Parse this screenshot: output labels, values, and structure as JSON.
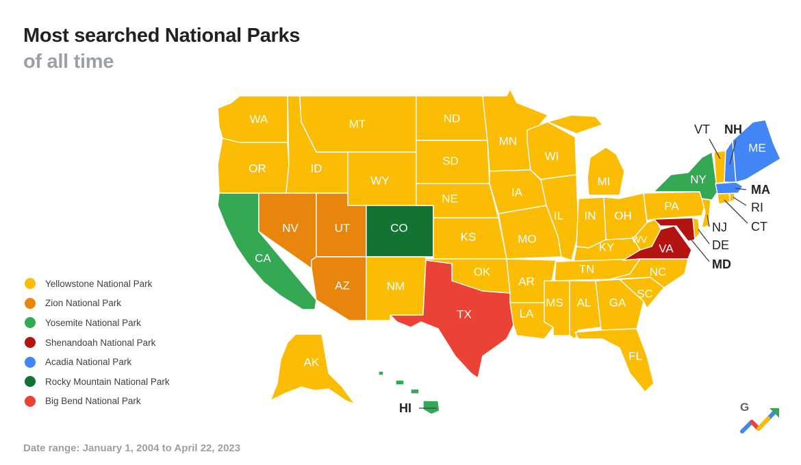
{
  "title": "Most searched National Parks",
  "subtitle": "of all time",
  "footer": "Date range: January 1, 2004 to April 22, 2023",
  "logo_letter": "G",
  "legend": [
    {
      "park": "Yellowstone National Park",
      "color": "#FBBC04"
    },
    {
      "park": "Zion National Park",
      "color": "#E8850C"
    },
    {
      "park": "Yosemite National Park",
      "color": "#34A853"
    },
    {
      "park": "Shenandoah National Park",
      "color": "#B31412"
    },
    {
      "park": "Acadia National Park",
      "color": "#4285F4"
    },
    {
      "park": "Rocky Mountain National Park",
      "color": "#137333"
    },
    {
      "park": "Big Bend National Park",
      "color": "#EA4335"
    }
  ],
  "states": {
    "WA": "Yellowstone National Park",
    "OR": "Yellowstone National Park",
    "ID": "Yellowstone National Park",
    "MT": "Yellowstone National Park",
    "WY": "Yellowstone National Park",
    "ND": "Yellowstone National Park",
    "SD": "Yellowstone National Park",
    "NE": "Yellowstone National Park",
    "KS": "Yellowstone National Park",
    "OK": "Yellowstone National Park",
    "NM": "Yellowstone National Park",
    "MN": "Yellowstone National Park",
    "IA": "Yellowstone National Park",
    "MO": "Yellowstone National Park",
    "AR": "Yellowstone National Park",
    "LA": "Yellowstone National Park",
    "WI": "Yellowstone National Park",
    "IL": "Yellowstone National Park",
    "MI": "Yellowstone National Park",
    "IN": "Yellowstone National Park",
    "OH": "Yellowstone National Park",
    "KY": "Yellowstone National Park",
    "TN": "Yellowstone National Park",
    "MS": "Yellowstone National Park",
    "AL": "Yellowstone National Park",
    "GA": "Yellowstone National Park",
    "FL": "Yellowstone National Park",
    "SC": "Yellowstone National Park",
    "NC": "Yellowstone National Park",
    "WV": "Yellowstone National Park",
    "PA": "Yellowstone National Park",
    "NJ": "Yellowstone National Park",
    "DE": "Yellowstone National Park",
    "CT": "Yellowstone National Park",
    "RI": "Yellowstone National Park",
    "VT": "Yellowstone National Park",
    "AK": "Yellowstone National Park",
    "NV": "Zion National Park",
    "UT": "Zion National Park",
    "AZ": "Zion National Park",
    "CA": "Yosemite National Park",
    "NY": "Yosemite National Park",
    "HI": "Yosemite National Park",
    "VA": "Shenandoah National Park",
    "MD": "Shenandoah National Park",
    "ME": "Acadia National Park",
    "NH": "Acadia National Park",
    "MA": "Acadia National Park",
    "CO": "Rocky Mountain National Park",
    "TX": "Big Bend National Park"
  }
}
